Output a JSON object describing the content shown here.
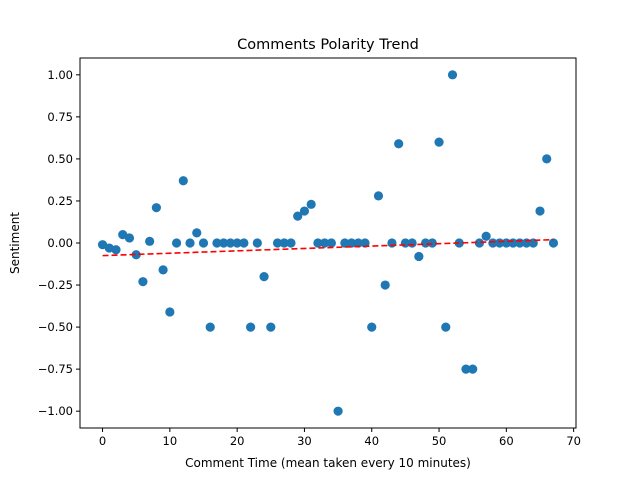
{
  "chart_data": {
    "type": "scatter",
    "title": "Comments Polarity Trend",
    "xlabel": "Comment Time (mean taken every 10 minutes)",
    "ylabel": "Sentiment",
    "xlim": [
      -3.35,
      70.35
    ],
    "ylim": [
      -1.1,
      1.1
    ],
    "xticks": [
      0,
      10,
      20,
      30,
      40,
      50,
      60,
      70
    ],
    "yticks": [
      -1.0,
      -0.75,
      -0.5,
      -0.25,
      0.0,
      0.25,
      0.5,
      0.75,
      1.0
    ],
    "xtick_labels": [
      "0",
      "10",
      "20",
      "30",
      "40",
      "50",
      "60",
      "70"
    ],
    "ytick_labels": [
      "−1.00",
      "−0.75",
      "−0.50",
      "−0.25",
      "0.00",
      "0.25",
      "0.50",
      "0.75",
      "1.00"
    ],
    "grid": false,
    "colors": {
      "points": "#1f77b4",
      "trend": "#ff0000"
    },
    "series": [
      {
        "x": [
          0,
          1,
          2,
          3,
          4,
          5,
          6,
          7,
          8,
          9,
          10,
          11,
          12,
          13,
          14,
          15,
          16,
          17,
          18,
          19,
          20,
          21,
          22,
          23,
          24,
          25,
          26,
          27,
          28,
          29,
          30,
          31,
          32,
          33,
          34,
          35,
          36,
          37,
          38,
          39,
          40,
          41,
          42,
          43,
          44,
          45,
          46,
          47,
          48,
          49,
          50,
          51,
          52,
          53,
          54,
          55,
          56,
          57,
          58,
          59,
          60,
          61,
          62,
          63,
          64,
          65,
          66,
          67
        ],
        "y": [
          -0.01,
          -0.03,
          -0.04,
          0.05,
          0.03,
          -0.07,
          -0.23,
          0.01,
          0.21,
          -0.16,
          -0.41,
          0.0,
          0.37,
          0.0,
          0.06,
          0.0,
          -0.5,
          0.0,
          0.0,
          0.0,
          0.0,
          0.0,
          -0.5,
          0.0,
          -0.2,
          -0.5,
          0.0,
          0.0,
          0.0,
          0.16,
          0.19,
          0.23,
          0.0,
          0.0,
          0.0,
          -1.0,
          0.0,
          0.0,
          0.0,
          0.0,
          -0.5,
          0.28,
          -0.25,
          0.0,
          0.59,
          0.0,
          0.0,
          -0.08,
          0.0,
          0.0,
          0.6,
          -0.5,
          1.0,
          0.0,
          -0.75,
          -0.75,
          0.0,
          0.04,
          0.0,
          0.0,
          0.0,
          0.0,
          0.0,
          0.0,
          0.0,
          0.19,
          0.5,
          0.0
        ]
      }
    ],
    "trend": {
      "x": [
        0,
        67
      ],
      "y": [
        -0.075,
        0.02
      ]
    }
  }
}
